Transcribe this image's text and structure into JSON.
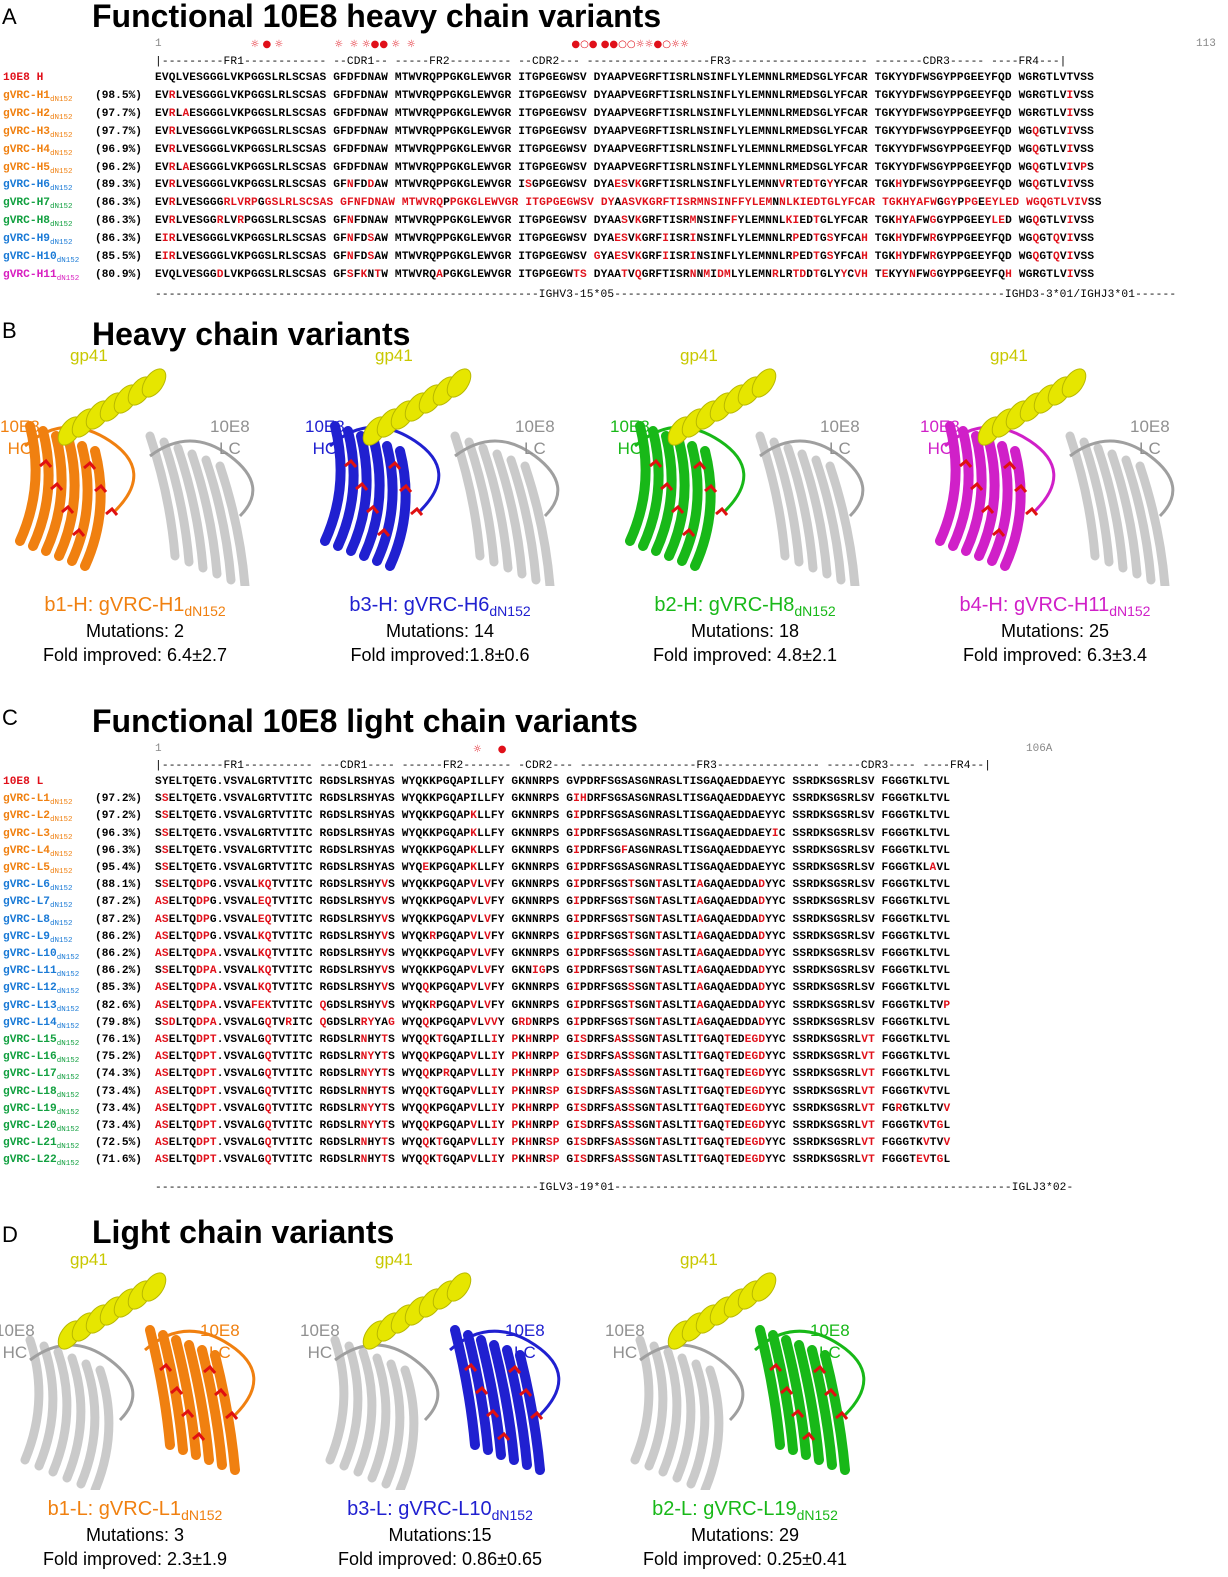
{
  "panels": {
    "A": {
      "letter": "A",
      "title": "Functional 10E8 heavy chain variants"
    },
    "B": {
      "letter": "B",
      "title": "Heavy chain variants"
    },
    "C": {
      "letter": "C",
      "title": "Functional 10E8 light chain variants"
    },
    "D": {
      "letter": "D",
      "title": "Light chain variants"
    }
  },
  "heavy": {
    "start": "1",
    "end": "113",
    "header": "|---------FR1------------ --CDR1-- -----FR2--------- --CDR2--- ------------------FR3-------------------- -------CDR3----- ----FR4---|",
    "germline": "--------------------------------------------------------IGHV3-15*05---------------------------------------------------------IGHD3-3*01/IGHJ3*01------",
    "marks": "                              ☼ ● ☼                ☼  ☼ ☼●● ☼  ☼                                                 ●○● ●●○○☼☼●○☼☼",
    "ref": {
      "name": "10E8 H",
      "seq": "EVQLVESGGGLVKPGGSLRLSCSAS GFDFDNAW MTWVRQPPGKGLEWVGR ITGPGEGWSV DYAAPVEGRFTISRLNSINFLYLEMNNLRMEDSGLYFCAR TGKYYDFWSGYPPGEEYFQD WGRGTLVTVSS"
    },
    "rows": [
      {
        "name": "gVRC-H1",
        "sub": "dN152",
        "pct": "(98.5%)",
        "color": "#f08010",
        "seq": "EVRLVESGGGLVKPGGSLRLSCSAS GFDFDNAW MTWVRQPPGKGLEWVGR ITGPGEGWSV DYAAPVEGRFTISRLNSINFLYLEMNNLRMEDSGLYFCAR TGKYYDFWSGYPPGEEYFQD WGRGTLVIVSS",
        "mut": [
          2,
          104
        ]
      },
      {
        "name": "gVRC-H2",
        "sub": "dN152",
        "pct": "(97.7%)",
        "color": "#f08010",
        "seq": "EVRLAESGGGLVKPGGSLRLSCSAS GFDFDNAW MTWVRQPPGKGLEWVGR ITGPGEGWSV DYAAPVEGRFTISRLNSINFLYLEMNNLRMEDSGLYFCAR TGKYYDFWSGYPPGEEYFQD WGRGTLVIVSS",
        "mut": [
          2,
          4,
          104
        ]
      },
      {
        "name": "gVRC-H3",
        "sub": "dN152",
        "pct": "(97.7%)",
        "color": "#f08010",
        "seq": "EVRLVESGGGLVKPGGSLRLSCSAS GFDFDNAW MTWVRQPPGKGLEWVGR ITGPGEGWSV DYAAPVEGRFTISRLNSINFLYLEMNNLRMEDSGLYFCAR TGKYYDFWSGYPPGEEYFQD WGQGTLVIVSS",
        "mut": [
          2,
          99,
          104
        ]
      },
      {
        "name": "gVRC-H4",
        "sub": "dN152",
        "pct": "(96.9%)",
        "color": "#f08010",
        "seq": "EVRLVESGGGLVKPGGSLRLSCSAS GFDFDNAW MTWVRQPPGKGLEWVGR ITGPGEGWSV DYAAPVEGRFTISRLNSINFLYLEMNNLRMEDSGLYFCAR TGKYYDFWSGYPPGEEYFQD WGQGTLVIVSS",
        "mut": [
          2,
          99,
          104
        ]
      },
      {
        "name": "gVRC-H5",
        "sub": "dN152",
        "pct": "(96.2%)",
        "color": "#f08010",
        "seq": "EVRLAESGGGLVKPGGSLRLSCSAS GFDFDNAW MTWVRQPPGKGLEWVGR ITGPGEGWSV DYAAPVEGRFTISRLNSINFLYLEMNNLRMEDSGLYFCAR TGKYYDFWSGYPPGEEYFQD WGQGTLVIVPS",
        "mut": [
          2,
          4,
          99,
          104,
          106
        ]
      },
      {
        "name": "gVRC-H6",
        "sub": "dN152",
        "pct": "(89.3%)",
        "color": "#1a7ad6",
        "seq": "EVRLVESGGGLVKPGGSLRLSCSAS GFNFDDAW MTWVRQPPGKGLEWVGR ISGPGEGWSV DYAESVKGRFTISRLNSINFLYLEMNNVRTEDTGYYFCAR TGKHYDFWSGYPPGEEYFQD WGQGTLVIVSS",
        "mut": [
          2,
          27,
          30,
          53,
          63,
          64,
          65,
          87,
          88,
          91,
          93,
          113,
          128,
          135
        ]
      },
      {
        "name": "gVRC-H7",
        "sub": "dN152",
        "pct": "(86.3%)",
        "color": "#12a040",
        "seq": "EVRLVESGGGRLVRPGGSLRLSCSAS GFNFDNAW MTWVRQPPGKGLEWVGR ITGPGEGWSV DYAASVKGRFTISRMNSINFFYLEMNNLKIEDTGLYFCAR TGKHYAFWGGYPPGEEYLED WGQGTLVIVSS",
        "mut": []
      },
      {
        "name": "gVRC-H8",
        "sub": "dN152",
        "pct": "(86.3%)",
        "color": "#12a040",
        "seq": "EVRLVESGGRLVRPGGSLRLSCSAS GFNFDNAW MTWVRQPPGKGLEWVGR ITGPGEGWSV DYAASVKGRFTISRMNSINFFYLEMNNLKIEDTGLYFCAR TGKHYAFWGGYPPGEEYLED WGQGTLVIVSS",
        "mut": [
          2,
          10,
          13,
          27,
          63,
          64,
          65,
          74,
          80,
          87,
          88,
          91,
          113,
          115,
          118,
          120,
          121,
          135
        ]
      },
      {
        "name": "gVRC-H9",
        "sub": "dN152",
        "pct": "(86.3%)",
        "color": "#1a7ad6",
        "seq": "EIRLVESGGGLVKPGGSLRLSCSAS GFNFDSAW MTWVRQPPGKGLEWVGR ITGPGEGWSV DYAESVKGRFIISRINSINFLYLEMNNLRPEDTGSYFCAH TGKHYDFWRGYPPGEEYFQD WGQGTQVIVSS",
        "mut": [
          1,
          2,
          27,
          30,
          63,
          64,
          65,
          71,
          74,
          89,
          91,
          93,
          99,
          113,
          119,
          135,
          140
        ]
      },
      {
        "name": "gVRC-H10",
        "sub": "dN152",
        "pct": "(85.5%)",
        "color": "#1a7ad6",
        "seq": "EIRLVESGGGLVKPGGSLRLSCSAS GFNFDSAW MTWVRQPPGKGLEWVGR ITGPGEGWSV GYAESVKGRFIISRINSINFLYLEMNNLRPEDTGSYFCAH TGKHYDFWRGYPPGEEYFQD WGQGTQVIVSS",
        "mut": [
          1,
          2,
          27,
          30,
          61,
          63,
          64,
          65,
          71,
          74,
          89,
          91,
          93,
          99,
          113,
          119,
          135,
          140
        ]
      },
      {
        "name": "gVRC-H11",
        "sub": "dN152",
        "pct": "(80.9%)",
        "color": "#d81fc0",
        "seq": "EVQLVESGGDLVKPGGSLRLSCSAS GFSFKNTW MTWVRQAPGKGLEWVGR ITGPGEGWTS DYAATVQGRFTISRNNMIDMLYLEMNRLRTDDTGLYYCVH TEKYYNFWGGYPPGEEYFQH WGRGTLVIVSS",
        "mut": []
      }
    ]
  },
  "light": {
    "start": "1",
    "end": "106A",
    "header": "|---------FR1---------- ---CDR1---- ------FR2------- -CDR2--- -----------------FR3--------------- -----CDR3---- ----FR4--|",
    "germline": "--------------------------------------------------------IGLV3-19*01----------------------------------------------------------IGLJ3*02-",
    "marks": "                                                                                                    ☼     ●",
    "ref": {
      "name": "10E8 L",
      "seq": "SYELTQETG.VSVALGRTVTITC RGDSLRSHYAS WYQKKPGQAPILLFY GKNNRPS GVPDRFSGSASGNRASLTISGAQAEDDAEYYC SSRDKSGSRLSV FGGGTKLTVL"
    },
    "rows": [
      {
        "name": "gVRC-L1",
        "sub": "dN152",
        "pct": "(97.2%)",
        "color": "#f08010",
        "seq": "SSELTQETG.VSVALGRTVTITC RGDSLRSHYAS WYQKKPGQAPILLFY GKNNRPS GIHDRFSGSASGNRASLTISGAQAEDDAEYYC SSRDKSGSRLSV FGGGTKLTVL"
      },
      {
        "name": "gVRC-L2",
        "sub": "dN152",
        "pct": "(97.2%)",
        "color": "#f08010",
        "seq": "SSELTQETG.VSVALGRTVTITC RGDSLRSHYAS WYQKKPGQAPKLLFY GKNNRPS GIPDRFSGSASGNRASLTISGAQAEDDAEYYC SSRDKSGSRLSV FGGGTKLTVL"
      },
      {
        "name": "gVRC-L3",
        "sub": "dN152",
        "pct": "(96.3%)",
        "color": "#f08010",
        "seq": "SSELTQETG.VSVALGRTVTITC RGDSLRSHYAS WYQKKPGQAPKLLFY GKNNRPS GIPDRFSGSASGNRASLTISGAQAEDDAEYIC SSRDKSGSRLSV FGGGTKLTVL"
      },
      {
        "name": "gVRC-L4",
        "sub": "dN152",
        "pct": "(96.3%)",
        "color": "#f08010",
        "seq": "SSELTQETG.VSVALGRTVTITC RGDSLRSHYAS WYQKKPGQAPKLLFY GKNNRPS GIPDRFSGFASGNRASLTISGAQAEDDAEYYC SSRDKSGSRLSV FGGGTKLTVL"
      },
      {
        "name": "gVRC-L5",
        "sub": "dN152",
        "pct": "(95.4%)",
        "color": "#f08010",
        "seq": "SSELTQETG.VSVALGRTVTITC RGDSLRSHYAS WYQEKPGQAPKLLFY GKNNRPS GIPDRFSGSASGNRASLTISGAQAEDDAEYYC SSRDKSGSRLSV FGGGTKLAVL"
      },
      {
        "name": "gVRC-L6",
        "sub": "dN152",
        "pct": "(88.1%)",
        "color": "#1a7ad6",
        "seq": "SSELTQDPG.VSVALKQTVTITC RGDSLRSHYVS WYQKKPGQAPVLVFY GKNNRPS GIPDRFSGSTSGNTASLTIAGAQAEDDADYYC SSRDKSGSRLSV FGGGTKLTVL"
      },
      {
        "name": "gVRC-L7",
        "sub": "dN152",
        "pct": "(87.2%)",
        "color": "#1a7ad6",
        "seq": "ASELTQDPG.VSVALEQTVTITC RGDSLRSHYVS WYQKKPGQAPVLVFY GKNNRPS GIPDRFSGSTSGNTASLTIAGAQAEDDADYYC SSRDKSGSRLSV FGGGTKLTVL"
      },
      {
        "name": "gVRC-L8",
        "sub": "dN152",
        "pct": "(87.2%)",
        "color": "#1a7ad6",
        "seq": "ASELTQDPG.VSVALEQTVTITC RGDSLRSHYVS WYQKKPGQAPVLVFY GKNNRPS GIPDRFSGSTSGNTASLTIAGAQAEDDADYYC SSRDKSGSRLSV FGGGTKLTVL"
      },
      {
        "name": "gVRC-L9",
        "sub": "dN152",
        "pct": "(86.2%)",
        "color": "#1a7ad6",
        "seq": "ASELTQDPG.VSVALKQTVTITC RGDSLRSHYVS WYQKRPGQAPVLVFY GKNNRPS GIPDRFSGSTSGNTASLTIAGAQAEDDADYYC SSRDKSGSRLSV FGGGTKLTVL"
      },
      {
        "name": "gVRC-L10",
        "sub": "dN152",
        "pct": "(86.2%)",
        "color": "#1a7ad6",
        "seq": "ASELTQDPA.VSVALKQTVTITC RGDSLRSHYVS WYQKKPGQAPVLVFY GKNNRPS GIPDRFSGSSSGNTASLTIAGAQAEDDADYYC SSRDKSGSRLSV FGGGTKLTVL"
      },
      {
        "name": "gVRC-L11",
        "sub": "dN152",
        "pct": "(86.2%)",
        "color": "#1a7ad6",
        "seq": "SSELTQDPA.VSVALKQTVTITC RGDSLRSHYVS WYQKKPGQAPVLVFY GKNIGPS GIPDRFSGSTSGNTASLTIAGAQAEDDADYYC SSRDKSGSRLSV FGGGTKLTVL"
      },
      {
        "name": "gVRC-L12",
        "sub": "dN152",
        "pct": "(85.3%)",
        "color": "#1a7ad6",
        "seq": "ASELTQDPA.VSVALKQTVTITC RGDSLRSHYVS WYQQKPGQAPVLVFY GKNNRPS GIPDRFSGSSSGNTASLTIAGAQAEDDADYYC SSRDKSGSRLSV FGGGTKLTVL"
      },
      {
        "name": "gVRC-L13",
        "sub": "dN152",
        "pct": "(82.6%)",
        "color": "#1a7ad6",
        "seq": "ASELTQDPA.VSVAFEKTVTITC QGDSLRSHYVS WYQKRPGQAPVLVFY GKNNRPS GIPDRFSGSTSGNTASLTIAGAQAEDDADYYC SSRDKSGSRLSV FGGGTKLTVP"
      },
      {
        "name": "gVRC-L14",
        "sub": "dN152",
        "pct": "(79.8%)",
        "color": "#1a7ad6",
        "seq": "SSDLTQDPA.VSVALGQTVRITC QGDSLRRYYAG WYQQKPGQAPVLVVY GRDNRPS GIPDRFSGSTSGNTASLTIAGAQAEDDADYYC SSRDKSGSRLSV FGGGTKLTVL"
      },
      {
        "name": "gVRC-L15",
        "sub": "dN152",
        "pct": "(76.1%)",
        "color": "#12a040",
        "seq": "ASELTQDPT.VSVALGQTVTITC RGDSLRNHYTS WYQQKTGQAPILLIY PKHNRPP GISDRFSASSSGNTASLTITGAQTEDEGDYYC SSRDKSGSRLVT FGGGTKLTVL"
      },
      {
        "name": "gVRC-L16",
        "sub": "dN152",
        "pct": "(75.2%)",
        "color": "#12a040",
        "seq": "ASELTQDPT.VSVALGQTVTITC RGDSLRNYYTS WYQQKPGQAPVLLIY PKHNRPP GISDRFSASSSGNTASLTITGAQTEDEGDYYC SSRDKSGSRLVT FGGGTKLTVL"
      },
      {
        "name": "gVRC-L17",
        "sub": "dN152",
        "pct": "(74.3%)",
        "color": "#12a040",
        "seq": "ASELTQDPT.VSVALGQTVTITC RGDSLRNYYTS WYQQKPRQAPVLLIY PKHNRPP GISDRFSASSSGNTASLTITGAQTEDEGDYYC SSRDKSGSRLVT FGGGTKLTVL"
      },
      {
        "name": "gVRC-L18",
        "sub": "dN152",
        "pct": "(73.4%)",
        "color": "#12a040",
        "seq": "ASELTQDPT.VSVALGQTVTITC RGDSLRNHYTS WYQQKTGQAPVLLIY PKHNRSP GISDRFSASSSGNTASLTITGAQTEDEGDYYC SSRDKSGSRLVT FGGGTKVTVL"
      },
      {
        "name": "gVRC-L19",
        "sub": "dN152",
        "pct": "(73.4%)",
        "color": "#12a040",
        "seq": "ASELTQDPT.VSVALGQTVTITC RGDSLRNYYTS WYQQKPGQAPVLLIY PKHNRPP GISDRFSASSSGNTASLTITGAQTEDEGDYYC SSRDKSGSRLVT FGRGTKLTVV"
      },
      {
        "name": "gVRC-L20",
        "sub": "dN152",
        "pct": "(73.4%)",
        "color": "#12a040",
        "seq": "ASELTQDPT.VSVALGQTVTITC RGDSLRNYYTS WYQQKPGQAPVLLIY PKHNRPP GISDRFSASSSGNTASLTITGAQTEDEGDYYC SSRDKSGSRLVT FGGGTKVTGL"
      },
      {
        "name": "gVRC-L21",
        "sub": "dN152",
        "pct": "(72.5%)",
        "color": "#12a040",
        "seq": "ASELTQDPT.VSVALGQTVTITC RGDSLRNHYTS WYQQKTGQAPVLLIY PKHNRSP GISDRFSASSSGNTASLTITGAQTEDEGDYYC SSRDKSGSRLVT FGGGTKVTVV"
      },
      {
        "name": "gVRC-L22",
        "sub": "dN152",
        "pct": "(71.6%)",
        "color": "#12a040",
        "seq": "ASELTQDPT.VSVALGQTVTITC RGDSLRNHYTS WYQQKTGQAPVLLIY PKHNRSP GISDRFSASSSGNTASLTITGAQTEDEGDYYC SSRDKSGSRLVT FGGGTEVTGL"
      }
    ]
  },
  "structures_heavy": [
    {
      "gp41": "gp41",
      "chain": "10E8\nHC",
      "other": "10E8\nLC",
      "color": "#f08010",
      "title": "b1-H: gVRC-H1",
      "sub": "dN152",
      "mutations": "Mutations: 2",
      "fold": "Fold improved: 6.4±2.7"
    },
    {
      "gp41": "gp41",
      "chain": "10E8\nHC",
      "other": "10E8\nLC",
      "color": "#2020d0",
      "title": "b3-H: gVRC-H6",
      "sub": "dN152",
      "mutations": "Mutations: 14",
      "fold": "Fold improved:1.8±0.6"
    },
    {
      "gp41": "gp41",
      "chain": "10E8\nHC",
      "other": "10E8\nLC",
      "color": "#18b818",
      "title": "b2-H: gVRC-H8",
      "sub": "dN152",
      "mutations": "Mutations: 18",
      "fold": "Fold improved: 4.8±2.1"
    },
    {
      "gp41": "gp41",
      "chain": "10E8\nHC",
      "other": "10E8\nLC",
      "color": "#d020c8",
      "title": "b4-H: gVRC-H11",
      "sub": "dN152",
      "mutations": "Mutations: 25",
      "fold": "Fold improved: 6.3±3.4"
    }
  ],
  "structures_light": [
    {
      "gp41": "gp41",
      "chain": "10E8\nLC",
      "other": "10E8\nHC",
      "color": "#f08010",
      "title": "b1-L: gVRC-L1",
      "sub": "dN152",
      "mutations": "Mutations: 3",
      "fold": "Fold improved: 2.3±1.9"
    },
    {
      "gp41": "gp41",
      "chain": "10E8\nLC",
      "other": "10E8\nHC",
      "color": "#2020d0",
      "title": "b3-L: gVRC-L10",
      "sub": "dN152",
      "mutations": "Mutations:15",
      "fold": "Fold improved: 0.86±0.65"
    },
    {
      "gp41": "gp41",
      "chain": "10E8\nLC",
      "other": "10E8\nHC",
      "color": "#18b818",
      "title": "b2-L: gVRC-L19",
      "sub": "dN152",
      "mutations": "Mutations: 29",
      "fold": "Fold improved: 0.25±0.41"
    }
  ]
}
